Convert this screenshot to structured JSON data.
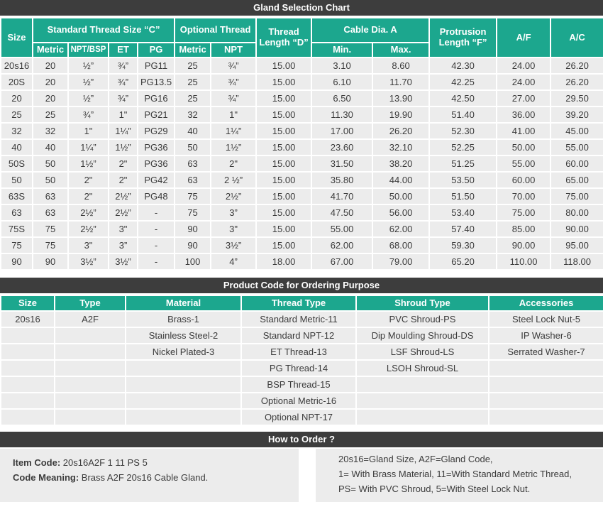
{
  "colors": {
    "accent_teal": "#1ca78e",
    "bar_dark": "#3d3d3d",
    "row_bg": "#ececec",
    "text": "#3b3b3b"
  },
  "gland_chart": {
    "title": "Gland Selection Chart",
    "header": {
      "size": "Size",
      "standard_thread": "Standard Thread Size “C”",
      "standard_sub": [
        "Metric",
        "NPT/BSP",
        "ET",
        "PG"
      ],
      "optional_thread": "Optional Thread",
      "optional_sub": [
        "Metric",
        "NPT"
      ],
      "thread_length": "Thread Length “D”",
      "cable_dia": "Cable  Dia.  A",
      "cable_sub": [
        "Min.",
        "Max."
      ],
      "protrusion": "Protrusion Length “F”",
      "af": "A/F",
      "ac": "A/C"
    },
    "rows": [
      [
        "20s16",
        "20",
        "½”",
        "¾”",
        "PG11",
        "25",
        "¾”",
        "15.00",
        "3.10",
        "8.60",
        "42.30",
        "24.00",
        "26.20"
      ],
      [
        "20S",
        "20",
        "½”",
        "¾”",
        "PG13.5",
        "25",
        "¾”",
        "15.00",
        "6.10",
        "11.70",
        "42.25",
        "24.00",
        "26.20"
      ],
      [
        "20",
        "20",
        "½”",
        "¾”",
        "PG16",
        "25",
        "¾”",
        "15.00",
        "6.50",
        "13.90",
        "42.50",
        "27.00",
        "29.50"
      ],
      [
        "25",
        "25",
        "¾”",
        "1\"",
        "PG21",
        "32",
        "1\"",
        "15.00",
        "11.30",
        "19.90",
        "51.40",
        "36.00",
        "39.20"
      ],
      [
        "32",
        "32",
        "1\"",
        "1¼”",
        "PG29",
        "40",
        "1¼”",
        "15.00",
        "17.00",
        "26.20",
        "52.30",
        "41.00",
        "45.00"
      ],
      [
        "40",
        "40",
        "1¼”",
        "1½”",
        "PG36",
        "50",
        "1½”",
        "15.00",
        "23.60",
        "32.10",
        "52.25",
        "50.00",
        "55.00"
      ],
      [
        "50S",
        "50",
        "1½”",
        "2\"",
        "PG36",
        "63",
        "2\"",
        "15.00",
        "31.50",
        "38.20",
        "51.25",
        "55.00",
        "60.00"
      ],
      [
        "50",
        "50",
        "2\"",
        "2\"",
        "PG42",
        "63",
        "2 ½”",
        "15.00",
        "35.80",
        "44.00",
        "53.50",
        "60.00",
        "65.00"
      ],
      [
        "63S",
        "63",
        "2\"",
        "2½”",
        "PG48",
        "75",
        "2½”",
        "15.00",
        "41.70",
        "50.00",
        "51.50",
        "70.00",
        "75.00"
      ],
      [
        "63",
        "63",
        "2½”",
        "2½”",
        "-",
        "75",
        "3”",
        "15.00",
        "47.50",
        "56.00",
        "53.40",
        "75.00",
        "80.00"
      ],
      [
        "75S",
        "75",
        "2½”",
        "3\"",
        "-",
        "90",
        "3\"",
        "15.00",
        "55.00",
        "62.00",
        "57.40",
        "85.00",
        "90.00"
      ],
      [
        "75",
        "75",
        "3\"",
        "3”",
        "-",
        "90",
        "3½”",
        "15.00",
        "62.00",
        "68.00",
        "59.30",
        "90.00",
        "95.00"
      ],
      [
        "90",
        "90",
        "3½”",
        "3½”",
        "-",
        "100",
        "4”",
        "18.00",
        "67.00",
        "79.00",
        "65.20",
        "110.00",
        "118.00"
      ]
    ]
  },
  "product_code": {
    "title": "Product Code for Ordering Purpose",
    "columns": [
      "Size",
      "Type",
      "Material",
      "Thread Type",
      "Shroud Type",
      "Accessories"
    ],
    "rows": [
      [
        "20s16",
        "A2F",
        "Brass-1",
        "Standard Metric-11",
        "PVC Shroud-PS",
        "Steel Lock Nut-5"
      ],
      [
        "",
        "",
        "Stainless Steel-2",
        "Standard NPT-12",
        "Dip Moulding Shroud-DS",
        "IP Washer-6"
      ],
      [
        "",
        "",
        "Nickel Plated-3",
        "ET Thread-13",
        "LSF Shroud-LS",
        "Serrated Washer-7"
      ],
      [
        "",
        "",
        "",
        "PG Thread-14",
        "LSOH Shroud-SL",
        ""
      ],
      [
        "",
        "",
        "",
        "BSP Thread-15",
        "",
        ""
      ],
      [
        "",
        "",
        "",
        "Optional Metric-16",
        "",
        ""
      ],
      [
        "",
        "",
        "",
        "Optional NPT-17",
        "",
        ""
      ]
    ]
  },
  "how_to_order": {
    "title": "How to Order ?",
    "item_code_label": "Item Code:",
    "item_code_value": "20s16A2F 1 11 PS 5",
    "code_meaning_label": "Code Meaning:",
    "code_meaning_value": "Brass A2F 20s16 Cable Gland.",
    "explanation_lines": [
      "20s16=Gland Size, A2F=Gland Code,",
      "1= With Brass Material, 11=With Standard Metric Thread,",
      "PS= With PVC Shroud, 5=With Steel Lock Nut."
    ]
  }
}
